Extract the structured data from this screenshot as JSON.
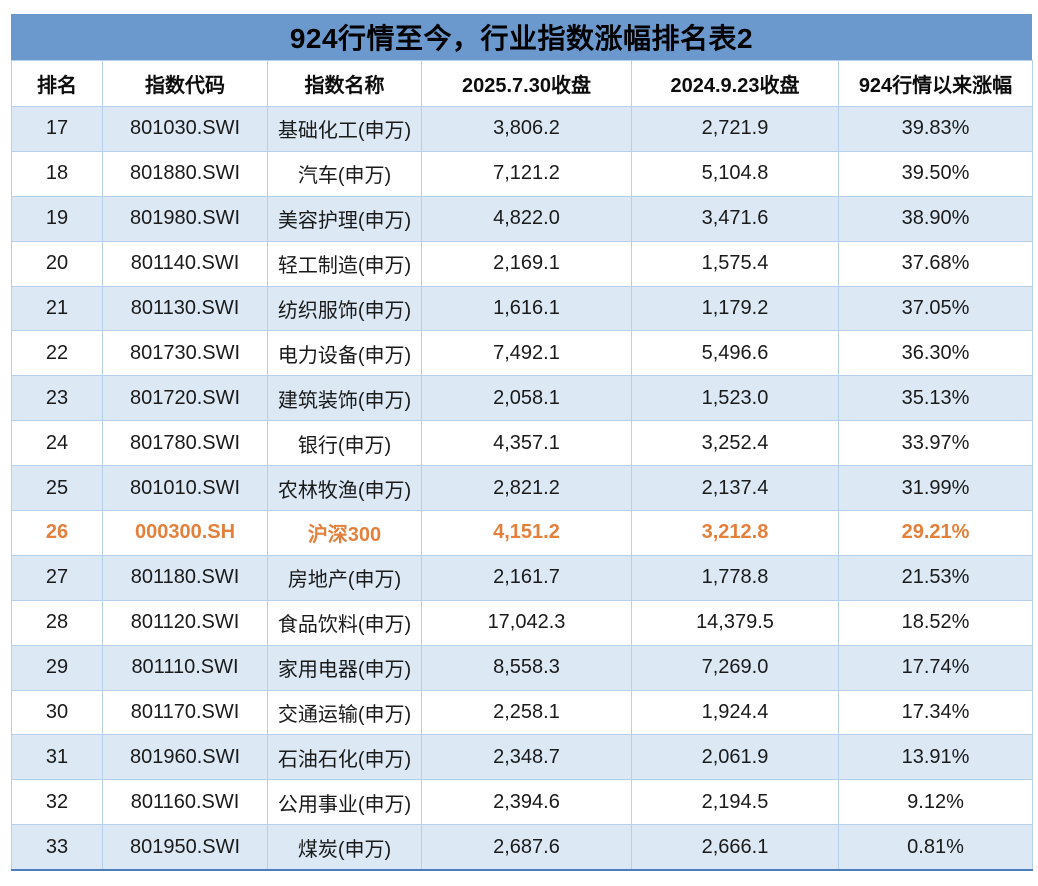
{
  "title": "924行情至今，行业指数涨幅排名表2",
  "colors": {
    "title_bar_bg": "#6B98CD",
    "title_text": "#000000",
    "shaded_row_bg": "#DCE9F5",
    "cell_border": "#B6CFEB",
    "bottom_border": "#4C7EBB",
    "highlight_text": "#E2803C",
    "body_text": "#1A1A1A"
  },
  "chart_data": {
    "type": "table",
    "title": "924行情至今，行业指数涨幅排名表2",
    "columns": [
      "排名",
      "指数代码",
      "指数名称",
      "2025.7.30收盘",
      "2024.9.23收盘",
      "924行情以来涨幅"
    ],
    "column_keys": [
      "rank",
      "index-code",
      "index-name",
      "close-2025-07-30",
      "close-2024-09-23",
      "change-since-924"
    ],
    "rows": [
      [
        "17",
        "801030.SWI",
        "基础化工(申万)",
        "3,806.2",
        "2,721.9",
        "39.83%"
      ],
      [
        "18",
        "801880.SWI",
        "汽车(申万)",
        "7,121.2",
        "5,104.8",
        "39.50%"
      ],
      [
        "19",
        "801980.SWI",
        "美容护理(申万)",
        "4,822.0",
        "3,471.6",
        "38.90%"
      ],
      [
        "20",
        "801140.SWI",
        "轻工制造(申万)",
        "2,169.1",
        "1,575.4",
        "37.68%"
      ],
      [
        "21",
        "801130.SWI",
        "纺织服饰(申万)",
        "1,616.1",
        "1,179.2",
        "37.05%"
      ],
      [
        "22",
        "801730.SWI",
        "电力设备(申万)",
        "7,492.1",
        "5,496.6",
        "36.30%"
      ],
      [
        "23",
        "801720.SWI",
        "建筑装饰(申万)",
        "2,058.1",
        "1,523.0",
        "35.13%"
      ],
      [
        "24",
        "801780.SWI",
        "银行(申万)",
        "4,357.1",
        "3,252.4",
        "33.97%"
      ],
      [
        "25",
        "801010.SWI",
        "农林牧渔(申万)",
        "2,821.2",
        "2,137.4",
        "31.99%"
      ],
      [
        "26",
        "000300.SH",
        "沪深300",
        "4,151.2",
        "3,212.8",
        "29.21%"
      ],
      [
        "27",
        "801180.SWI",
        "房地产(申万)",
        "2,161.7",
        "1,778.8",
        "21.53%"
      ],
      [
        "28",
        "801120.SWI",
        "食品饮料(申万)",
        "17,042.3",
        "14,379.5",
        "18.52%"
      ],
      [
        "29",
        "801110.SWI",
        "家用电器(申万)",
        "8,558.3",
        "7,269.0",
        "17.74%"
      ],
      [
        "30",
        "801170.SWI",
        "交通运输(申万)",
        "2,258.1",
        "1,924.4",
        "17.34%"
      ],
      [
        "31",
        "801960.SWI",
        "石油石化(申万)",
        "2,348.7",
        "2,061.9",
        "13.91%"
      ],
      [
        "32",
        "801160.SWI",
        "公用事业(申万)",
        "2,394.6",
        "2,194.5",
        "9.12%"
      ],
      [
        "33",
        "801950.SWI",
        "煤炭(申万)",
        "2,687.6",
        "2,666.1",
        "0.81%"
      ]
    ],
    "highlight_row_rank": "26",
    "shaded_row_ranks": [
      "17",
      "19",
      "21",
      "23",
      "25",
      "27",
      "29",
      "31",
      "33"
    ]
  }
}
